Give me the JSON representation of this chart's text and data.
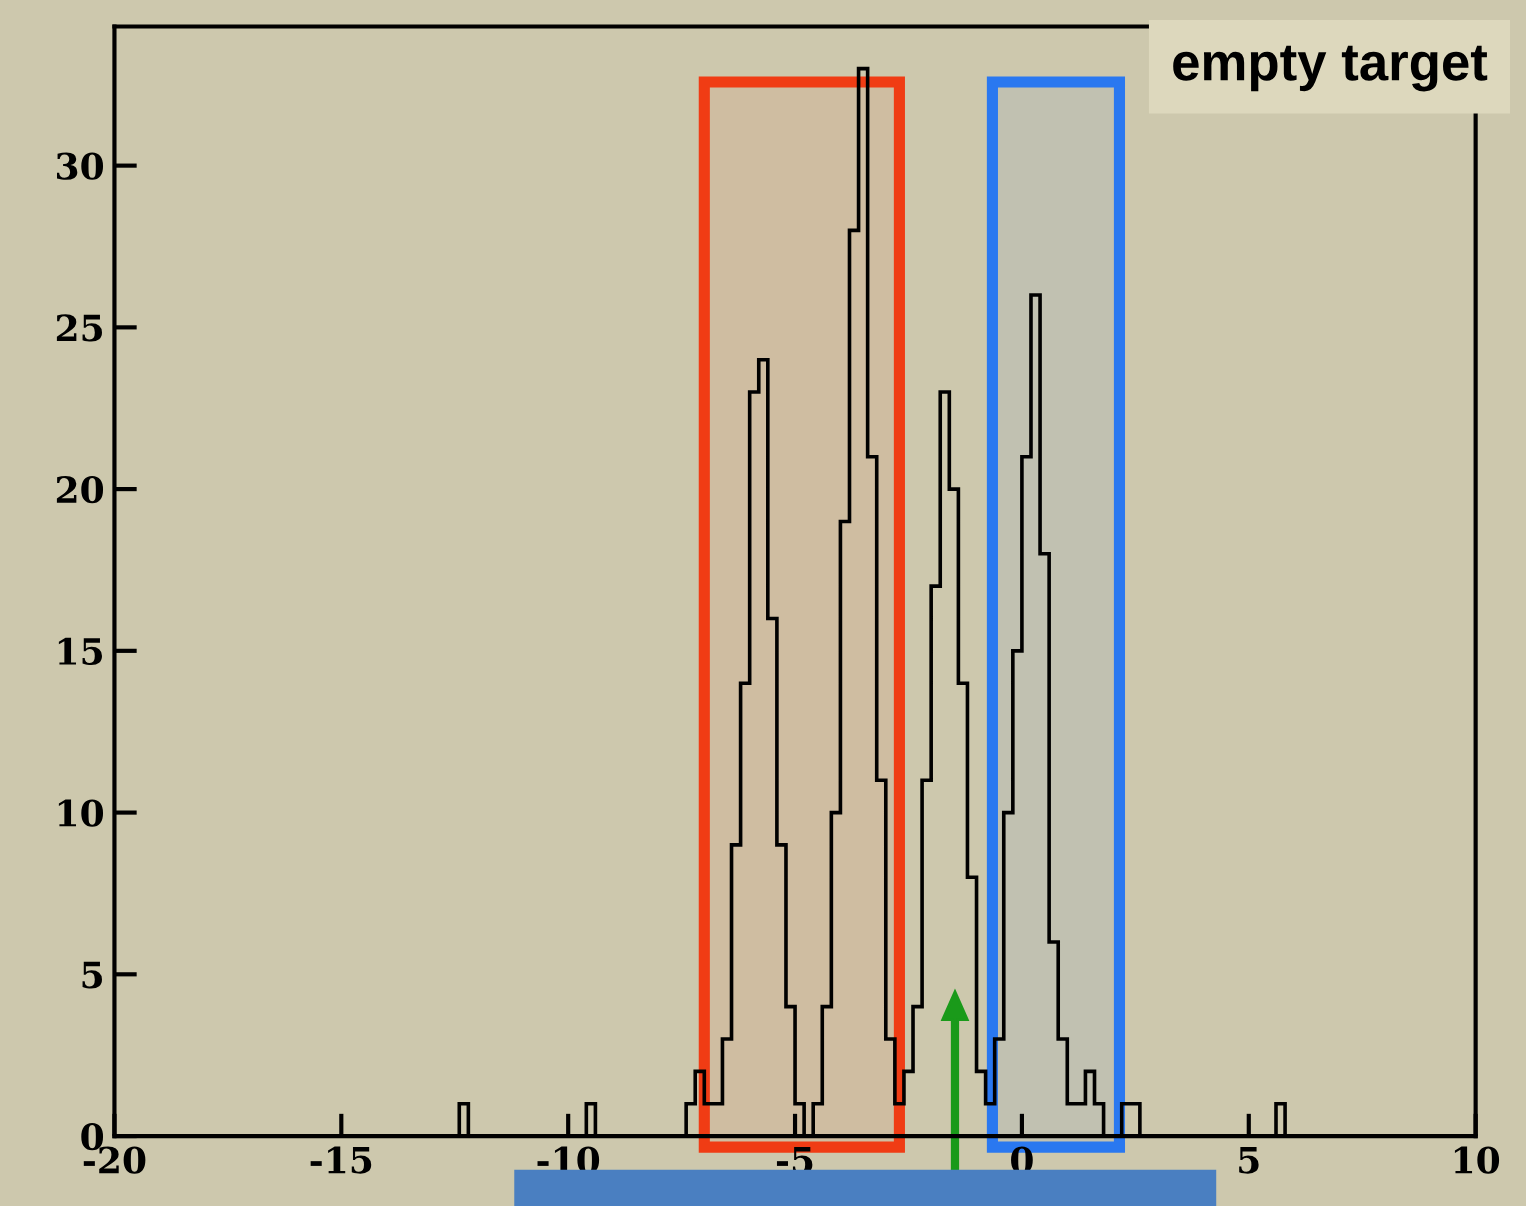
{
  "chart_data": {
    "type": "histogram",
    "bins": [
      -20.0,
      -19.8,
      -19.6,
      -19.4,
      -19.2,
      -19.0,
      -18.8,
      -18.6,
      -18.4,
      -18.2,
      -18.0,
      -17.8,
      -17.6,
      -17.4,
      -17.2,
      -17.0,
      -16.8,
      -16.6,
      -16.4,
      -16.2,
      -16.0,
      -15.8,
      -15.6,
      -15.4,
      -15.2,
      -15.0,
      -14.8,
      -14.6,
      -14.4,
      -14.2,
      -14.0,
      -13.8,
      -13.6,
      -13.4,
      -13.2,
      -13.0,
      -12.8,
      -12.6,
      -12.4,
      -12.2,
      -12.0,
      -11.8,
      -11.6,
      -11.4,
      -11.2,
      -11.0,
      -10.8,
      -10.6,
      -10.4,
      -10.2,
      -10.0,
      -9.8,
      -9.6,
      -9.4,
      -9.2,
      -9.0,
      -8.8,
      -8.6,
      -8.4,
      -8.2,
      -8.0,
      -7.8,
      -7.6,
      -7.4,
      -7.2,
      -7.0,
      -6.8,
      -6.6,
      -6.4,
      -6.2,
      -6.0,
      -5.8,
      -5.6,
      -5.4,
      -5.2,
      -5.0,
      -4.8,
      -4.6,
      -4.4,
      -4.2,
      -4.0,
      -3.8,
      -3.6,
      -3.4,
      -3.2,
      -3.0,
      -2.8,
      -2.6,
      -2.4,
      -2.2,
      -2.0,
      -1.8,
      -1.6,
      -1.4,
      -1.2,
      -1.0,
      -0.8,
      -0.6,
      -0.4,
      -0.2,
      0.0,
      0.2,
      0.4,
      0.6,
      0.8,
      1.0,
      1.2,
      1.4,
      1.6,
      1.8,
      2.0,
      2.2,
      2.4,
      2.6,
      2.8,
      3.0,
      3.2,
      3.4,
      3.6,
      3.8,
      4.0,
      4.2,
      4.4,
      4.6,
      4.8,
      5.0,
      5.2,
      5.4,
      5.6,
      5.8,
      6.0,
      6.2,
      6.4,
      6.6,
      6.8,
      7.0,
      7.2,
      7.4,
      7.6,
      7.8,
      8.0,
      8.2,
      8.4,
      8.6,
      8.8,
      9.0,
      9.2,
      9.4,
      9.6,
      9.8,
      10.0
    ],
    "values": [
      0,
      0,
      0,
      0,
      0,
      0,
      0,
      0,
      0,
      0,
      0,
      0,
      0,
      0,
      0,
      0,
      0,
      0,
      0,
      0,
      0,
      0,
      0,
      0,
      0,
      0,
      0,
      0,
      0,
      0,
      0,
      0,
      0,
      0,
      0,
      0,
      0,
      0,
      1,
      0,
      0,
      0,
      0,
      0,
      0,
      0,
      0,
      0,
      0,
      0,
      0,
      0,
      1,
      0,
      0,
      0,
      0,
      0,
      0,
      0,
      0,
      0,
      0,
      1,
      2,
      1,
      1,
      3,
      9,
      14,
      23,
      24,
      16,
      9,
      4,
      1,
      0,
      1,
      4,
      10,
      19,
      28,
      33,
      21,
      11,
      3,
      1,
      2,
      4,
      11,
      17,
      23,
      20,
      14,
      8,
      2,
      1,
      3,
      10,
      15,
      21,
      26,
      18,
      6,
      3,
      1,
      1,
      2,
      1,
      0,
      0,
      1,
      1,
      0,
      0,
      0,
      0,
      0,
      0,
      0,
      0,
      0,
      0,
      0,
      0,
      0,
      0,
      0,
      1,
      0,
      0,
      0,
      0,
      0,
      0,
      0,
      0,
      0,
      0,
      0,
      0,
      0,
      0,
      0,
      0,
      0,
      0,
      0,
      0,
      0
    ],
    "color": "#000000",
    "xlim": [
      -20,
      10
    ],
    "ylim": [
      0,
      34.3
    ],
    "xticks": [
      -20,
      -15,
      -10,
      -5,
      0,
      5,
      10
    ],
    "yticks": [
      0,
      5,
      10,
      15,
      20,
      25,
      30
    ],
    "annotations": [
      "empty target"
    ],
    "bands": [
      {
        "axis": "x",
        "from": -7.0,
        "to": -2.7,
        "color": "#f03c14"
      },
      {
        "axis": "x",
        "from": -0.65,
        "to": 2.15,
        "color": "#2a78f0"
      }
    ],
    "grid": false
  }
}
